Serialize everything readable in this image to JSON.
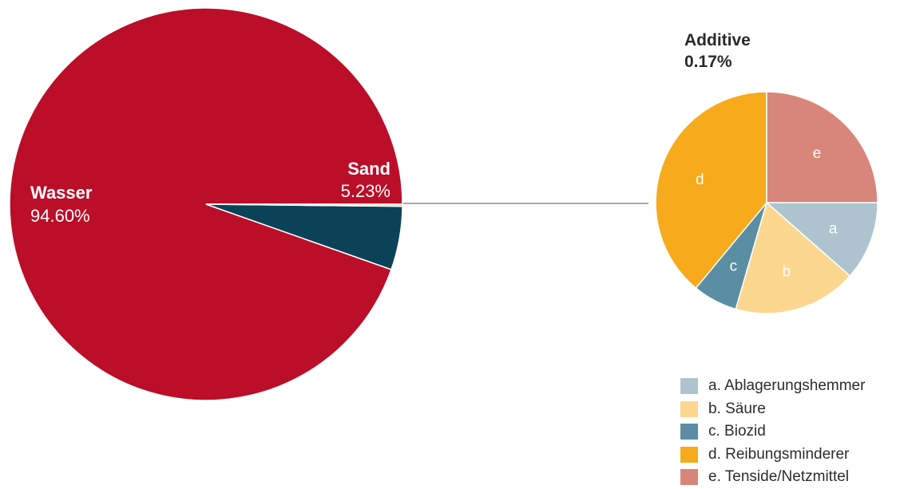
{
  "chart_data": [
    {
      "type": "pie",
      "slices": [
        {
          "label": "Wasser",
          "value": 94.6,
          "value_label": "94.60%",
          "color": "#bb0e29"
        },
        {
          "label": "Sand",
          "value": 5.23,
          "value_label": "5.23%",
          "color": "#0a4257"
        },
        {
          "label": "Additive",
          "value": 0.17,
          "value_label": "0.17%",
          "color": "#f2cd7c"
        }
      ]
    },
    {
      "type": "pie",
      "title": "Additive",
      "title_value": "0.17%",
      "slices": [
        {
          "key": "a",
          "label": "a. Ablagerungshemmer",
          "value": 11.5,
          "color": "#adc4cf"
        },
        {
          "key": "b",
          "label": "b. Säure",
          "value": 18.0,
          "color": "#fdd690"
        },
        {
          "key": "c",
          "label": "c. Biozid",
          "value": 6.5,
          "color": "#5b8ea3"
        },
        {
          "key": "d",
          "label": "d. Reibungsminderer",
          "value": 39.0,
          "color": "#f7aa1b"
        },
        {
          "key": "e",
          "label": "e. Tenside/Netzmittel",
          "value": 25.0,
          "color": "#d9867a"
        }
      ]
    }
  ]
}
